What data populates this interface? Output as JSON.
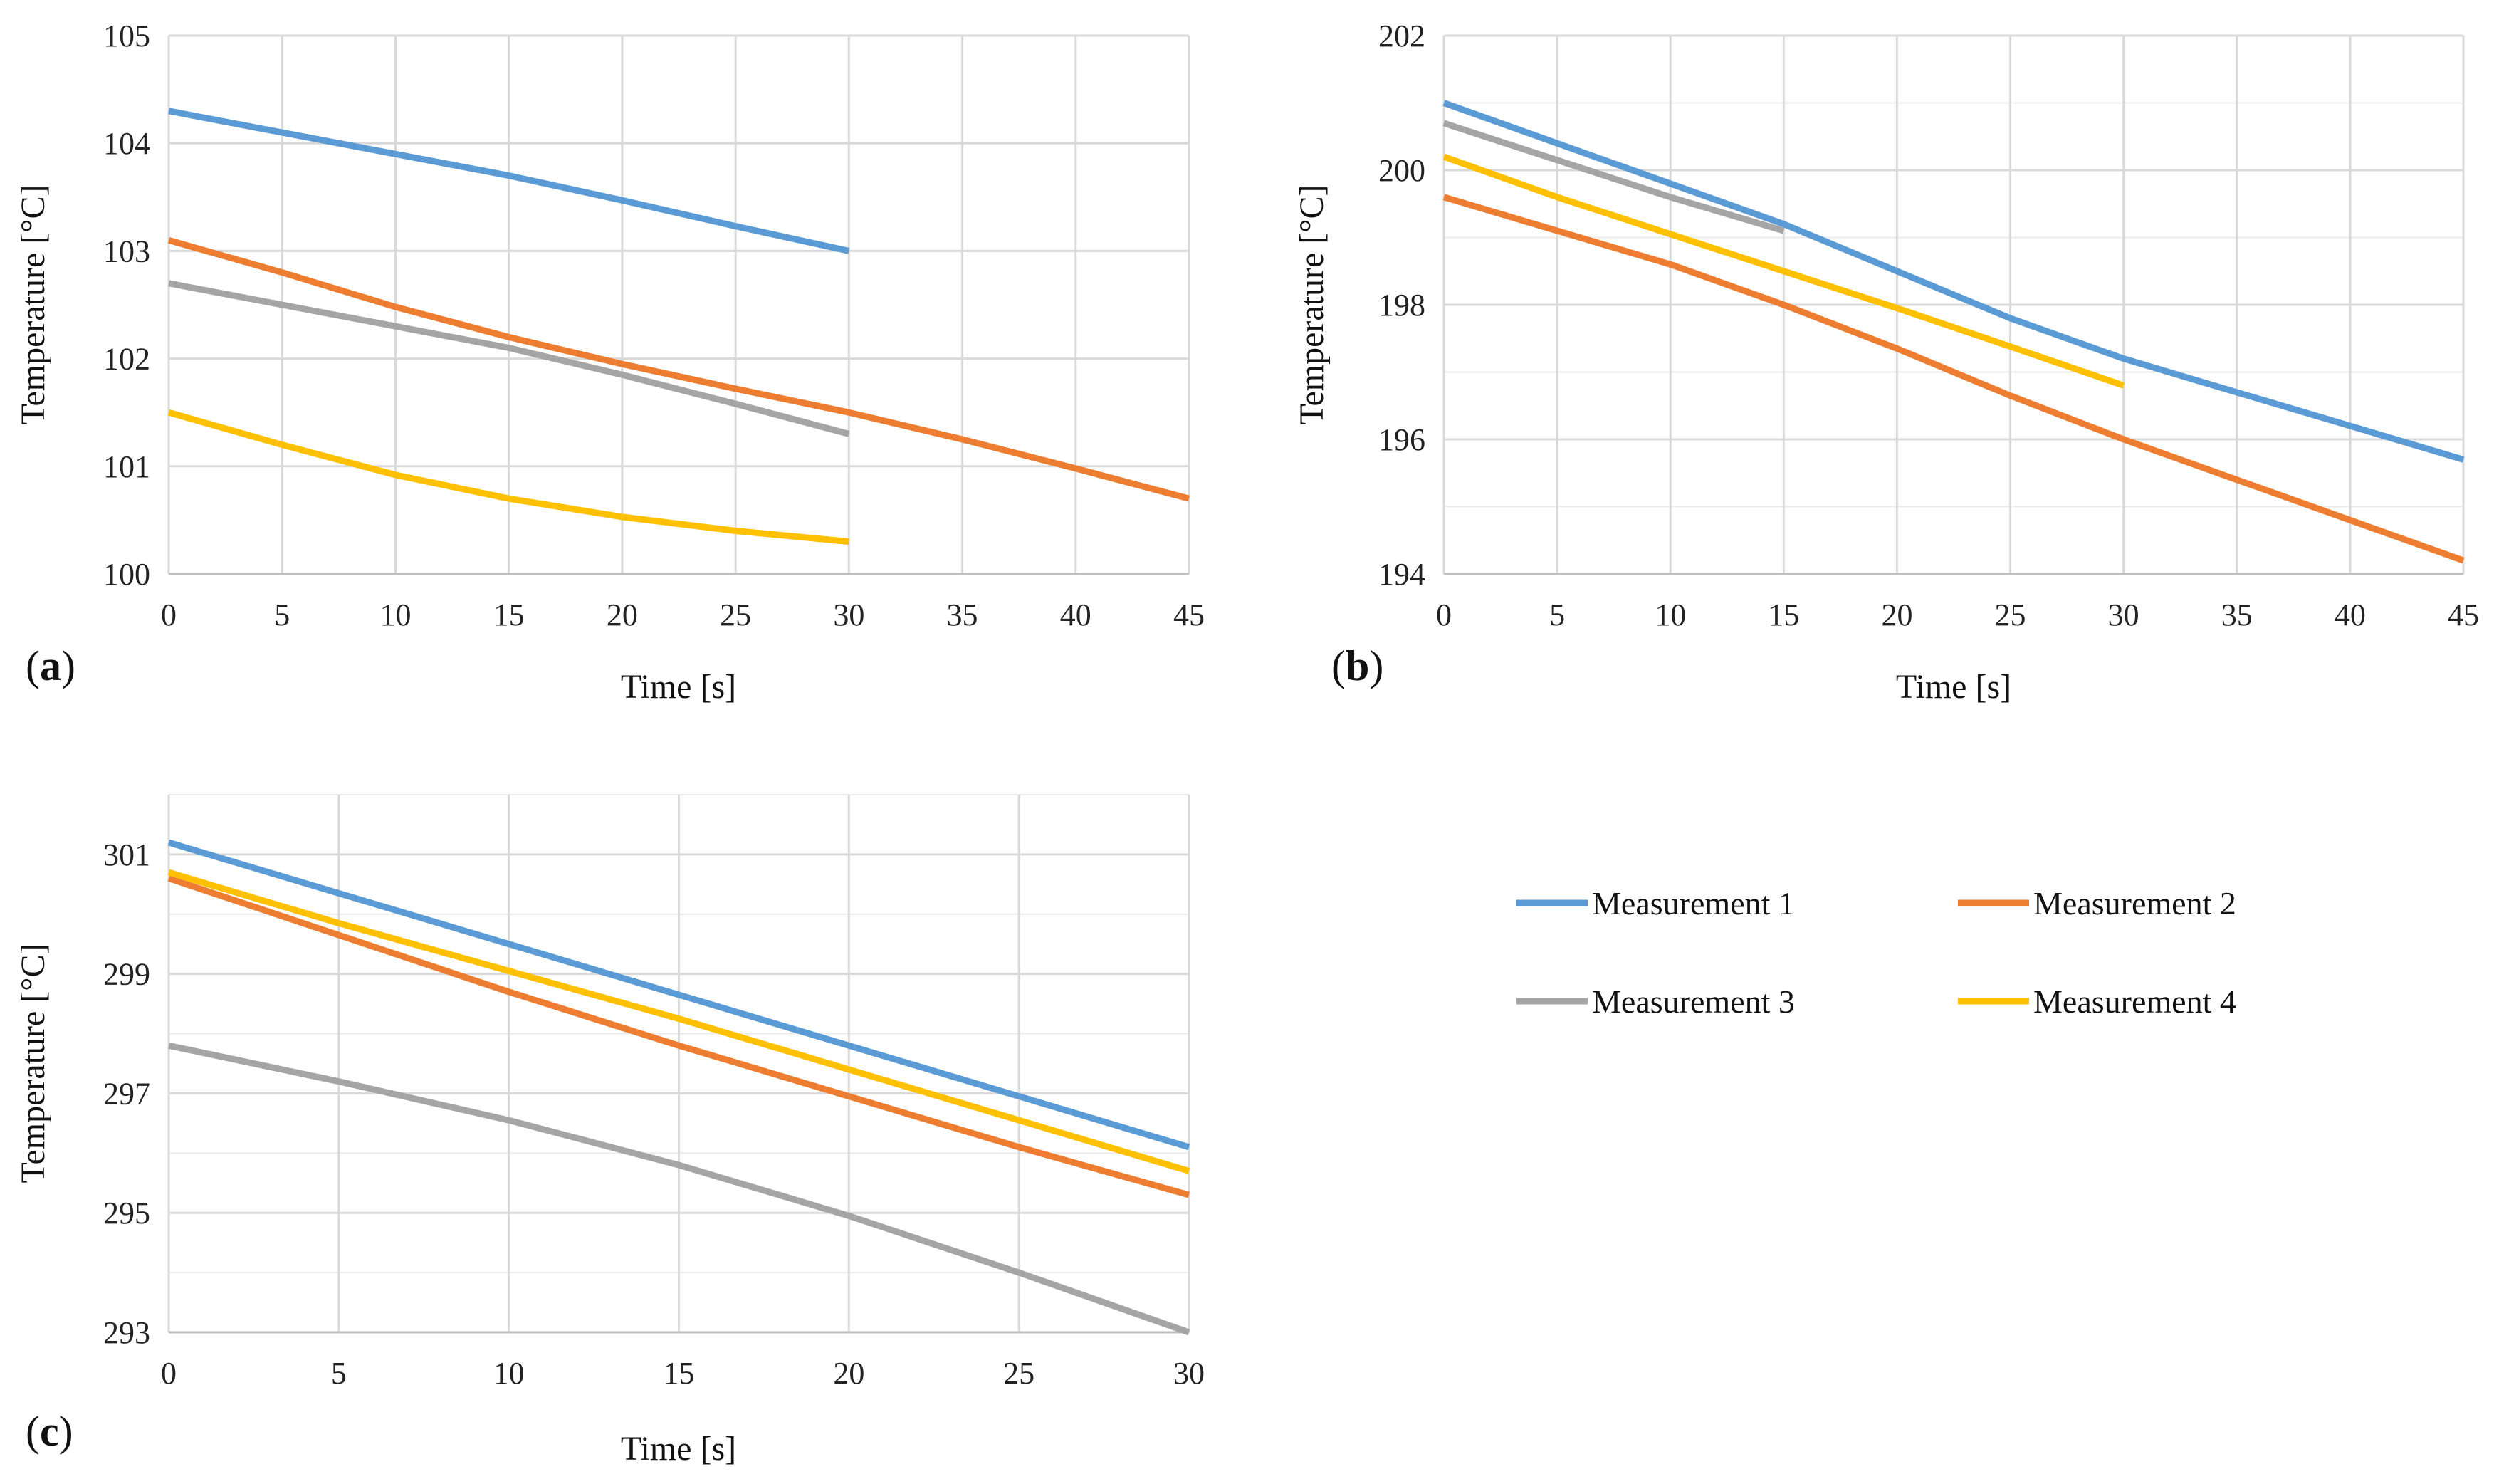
{
  "colors": {
    "Measurement 1": "#5B9BD5",
    "Measurement 2": "#ED7D31",
    "Measurement 3": "#A5A5A5",
    "Measurement 4": "#FFC000",
    "grid": "#D9D9D9"
  },
  "legend": {
    "items": [
      "Measurement 1",
      "Measurement 2",
      "Measurement 3",
      "Measurement 4"
    ]
  },
  "chart_data": [
    {
      "panel": "a",
      "label_open": "(",
      "label_letter": "a",
      "label_close": ")",
      "type": "line",
      "xlabel": "Time [s]",
      "ylabel": "Temperature [°C]",
      "xlim": [
        0,
        45
      ],
      "ylim": [
        100,
        105
      ],
      "xticks": [
        0,
        5,
        10,
        15,
        20,
        25,
        30,
        35,
        40,
        45
      ],
      "yticks": [
        100,
        101,
        102,
        103,
        104,
        105
      ],
      "minor_y_grid": [],
      "series": [
        {
          "name": "Measurement 1",
          "x": [
            0,
            5,
            10,
            15,
            20,
            25,
            30
          ],
          "values": [
            104.3,
            104.1,
            103.9,
            103.7,
            103.47,
            103.23,
            103.0
          ]
        },
        {
          "name": "Measurement 2",
          "x": [
            0,
            5,
            10,
            15,
            20,
            25,
            30,
            35,
            40,
            45
          ],
          "values": [
            103.1,
            102.8,
            102.48,
            102.2,
            101.95,
            101.72,
            101.5,
            101.25,
            100.98,
            100.7
          ]
        },
        {
          "name": "Measurement 3",
          "x": [
            0,
            5,
            10,
            15,
            20,
            25,
            30
          ],
          "values": [
            102.7,
            102.5,
            102.3,
            102.1,
            101.85,
            101.58,
            101.3
          ]
        },
        {
          "name": "Measurement 4",
          "x": [
            0,
            5,
            10,
            15,
            20,
            25,
            30
          ],
          "values": [
            101.5,
            101.2,
            100.92,
            100.7,
            100.53,
            100.4,
            100.3
          ]
        }
      ]
    },
    {
      "panel": "b",
      "label_open": "(",
      "label_letter": "b",
      "label_close": ")",
      "type": "line",
      "xlabel": "Time [s]",
      "ylabel": "Temperature [°C]",
      "xlim": [
        0,
        45
      ],
      "ylim": [
        194,
        202
      ],
      "xticks": [
        0,
        5,
        10,
        15,
        20,
        25,
        30,
        35,
        40,
        45
      ],
      "yticks": [
        194,
        196,
        198,
        200,
        202
      ],
      "minor_y_grid": [
        195,
        197,
        199,
        201
      ],
      "series": [
        {
          "name": "Measurement 1",
          "x": [
            0,
            5,
            10,
            15,
            20,
            25,
            30,
            35,
            40,
            45
          ],
          "values": [
            201.0,
            200.4,
            199.8,
            199.2,
            198.5,
            197.8,
            197.2,
            196.7,
            196.2,
            195.7
          ]
        },
        {
          "name": "Measurement 2",
          "x": [
            0,
            5,
            10,
            15,
            20,
            25,
            30,
            35,
            40,
            45
          ],
          "values": [
            199.6,
            199.1,
            198.6,
            198.0,
            197.35,
            196.65,
            196.0,
            195.4,
            194.8,
            194.2
          ]
        },
        {
          "name": "Measurement 3",
          "x": [
            0,
            5,
            10,
            15
          ],
          "values": [
            200.7,
            200.15,
            199.6,
            199.1
          ]
        },
        {
          "name": "Measurement 4",
          "x": [
            0,
            5,
            10,
            15,
            20,
            25,
            30
          ],
          "values": [
            200.2,
            199.6,
            199.05,
            198.5,
            197.95,
            197.38,
            196.8
          ]
        }
      ]
    },
    {
      "panel": "c",
      "label_open": "(",
      "label_letter": "c",
      "label_close": ")",
      "type": "line",
      "xlabel": "Time [s]",
      "ylabel": "Temperature [°C]",
      "xlim": [
        0,
        30
      ],
      "ylim": [
        293,
        302
      ],
      "xticks": [
        0,
        5,
        10,
        15,
        20,
        25,
        30
      ],
      "yticks": [
        293,
        295,
        297,
        299,
        301
      ],
      "minor_y_grid": [
        294,
        296,
        298,
        300,
        302
      ],
      "series": [
        {
          "name": "Measurement 1",
          "x": [
            0,
            5,
            10,
            15,
            20,
            25,
            30
          ],
          "values": [
            301.2,
            300.35,
            299.5,
            298.65,
            297.8,
            296.95,
            296.1
          ]
        },
        {
          "name": "Measurement 2",
          "x": [
            0,
            5,
            10,
            15,
            20,
            25,
            30
          ],
          "values": [
            300.6,
            299.65,
            298.7,
            297.8,
            296.95,
            296.1,
            295.3
          ]
        },
        {
          "name": "Measurement 3",
          "x": [
            0,
            5,
            10,
            15,
            20,
            25,
            30
          ],
          "values": [
            297.8,
            297.2,
            296.55,
            295.8,
            294.95,
            294.0,
            293.0
          ]
        },
        {
          "name": "Measurement 4",
          "x": [
            0,
            5,
            10,
            15,
            20,
            25,
            30
          ],
          "values": [
            300.7,
            299.85,
            299.05,
            298.25,
            297.4,
            296.55,
            295.7
          ]
        }
      ]
    }
  ]
}
